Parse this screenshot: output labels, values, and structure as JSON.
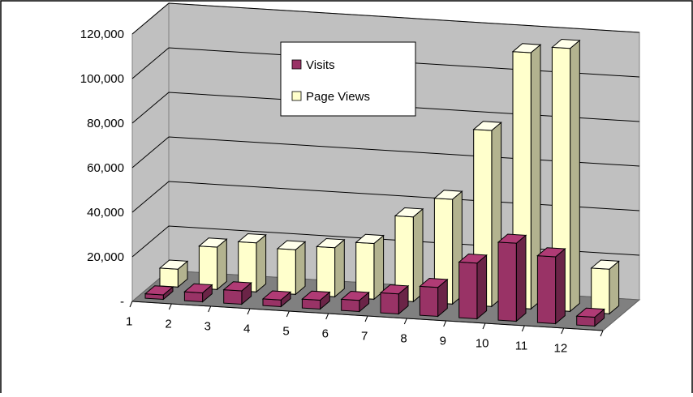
{
  "chart_data": {
    "type": "bar",
    "subtype": "3d-clustered-column",
    "categories": [
      "1",
      "2",
      "3",
      "4",
      "5",
      "6",
      "7",
      "8",
      "9",
      "10",
      "11",
      "12"
    ],
    "series": [
      {
        "name": "Visits",
        "color": "#993366",
        "values": [
          2000,
          4000,
          6000,
          3000,
          4000,
          5000,
          9000,
          13000,
          25000,
          35000,
          30000,
          4000
        ]
      },
      {
        "name": "Page Views",
        "color": "#FFFFCC",
        "values": [
          8000,
          19000,
          22000,
          20000,
          22000,
          25000,
          38000,
          47000,
          79000,
          115000,
          118000,
          20000
        ]
      }
    ],
    "ylim": [
      0,
      120000
    ],
    "y_ticks": [
      "-",
      "20,000",
      "40,000",
      "60,000",
      "80,000",
      "100,000",
      "120,000"
    ],
    "grid": true,
    "legend": "top-center",
    "colors": {
      "walls": "#C0C0C0",
      "floor": "#808080",
      "gridline": "#000000"
    }
  }
}
